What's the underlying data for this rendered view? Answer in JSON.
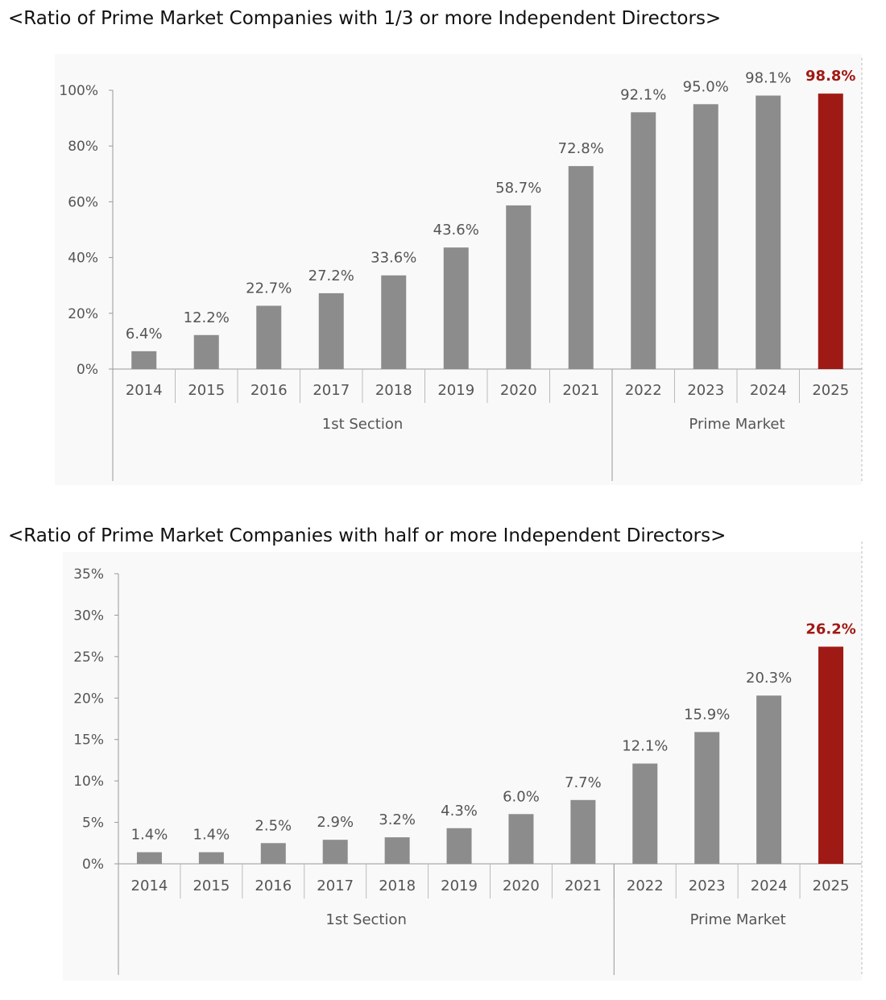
{
  "chart_data": [
    {
      "type": "bar",
      "title": "<Ratio of Prime Market Companies with 1/3 or more Independent Directors>",
      "categories": [
        "2014",
        "2015",
        "2016",
        "2017",
        "2018",
        "2019",
        "2020",
        "2021",
        "2022",
        "2023",
        "2024",
        "2025"
      ],
      "values": [
        6.4,
        12.2,
        22.7,
        27.2,
        33.6,
        43.6,
        58.7,
        72.8,
        92.1,
        95.0,
        98.1,
        98.8
      ],
      "labels": [
        "6.4%",
        "12.2%",
        "22.7%",
        "27.2%",
        "33.6%",
        "43.6%",
        "58.7%",
        "72.8%",
        "92.1%",
        "95.0%",
        "98.1%",
        "98.8%"
      ],
      "yticks": [
        "0%",
        "20%",
        "40%",
        "60%",
        "80%",
        "100%"
      ],
      "ytick_values": [
        0,
        20,
        40,
        60,
        80,
        100
      ],
      "ylim": [
        0,
        100
      ],
      "groups": [
        {
          "label": "1st Section",
          "count": 8
        },
        {
          "label": "Prime Market",
          "count": 4
        }
      ],
      "highlight_index": 11,
      "colors": {
        "bar": "#8c8c8c",
        "highlight": "#a01a15",
        "label": "#555555",
        "background": "#f9f9f9"
      }
    },
    {
      "type": "bar",
      "title": "<Ratio of Prime Market Companies with half or more Independent Directors>",
      "categories": [
        "2014",
        "2015",
        "2016",
        "2017",
        "2018",
        "2019",
        "2020",
        "2021",
        "2022",
        "2023",
        "2024",
        "2025"
      ],
      "values": [
        1.4,
        1.4,
        2.5,
        2.9,
        3.2,
        4.3,
        6.0,
        7.7,
        12.1,
        15.9,
        20.3,
        26.2
      ],
      "labels": [
        "1.4%",
        "1.4%",
        "2.5%",
        "2.9%",
        "3.2%",
        "4.3%",
        "6.0%",
        "7.7%",
        "12.1%",
        "15.9%",
        "20.3%",
        "26.2%"
      ],
      "yticks": [
        "0%",
        "5%",
        "10%",
        "15%",
        "20%",
        "25%",
        "30%",
        "35%"
      ],
      "ytick_values": [
        0,
        5,
        10,
        15,
        20,
        25,
        30,
        35
      ],
      "ylim": [
        0,
        35
      ],
      "groups": [
        {
          "label": "1st Section",
          "count": 8
        },
        {
          "label": "Prime Market",
          "count": 4
        }
      ],
      "highlight_index": 11,
      "colors": {
        "bar": "#8c8c8c",
        "highlight": "#a01a15",
        "label": "#555555",
        "background": "#f9f9f9"
      }
    }
  ]
}
